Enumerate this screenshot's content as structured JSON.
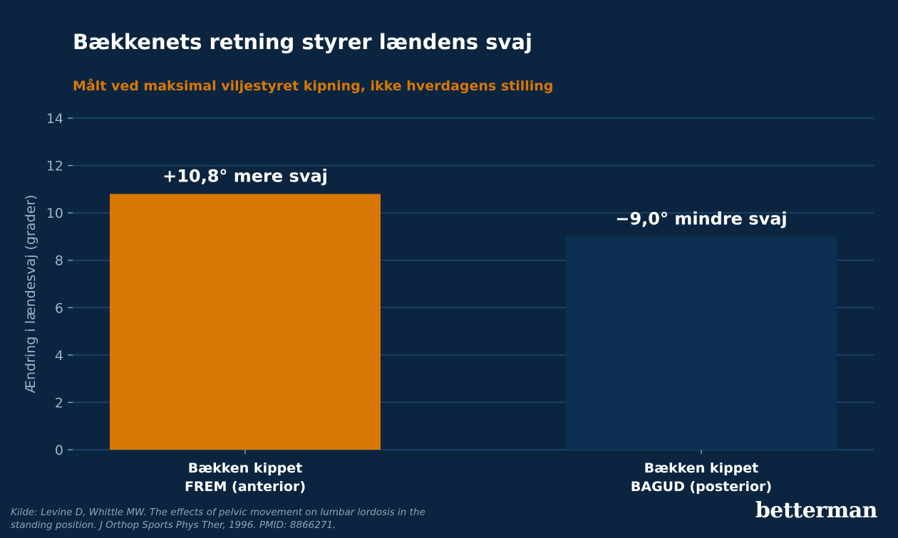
{
  "chart_data": {
    "type": "bar",
    "title": "Bækkenets retning styrer lændens svaj",
    "subtitle": "Målt ved maksimal viljestyret kipning, ikke hverdagens stilling",
    "ylabel": "Ændring i lændesvaj (grader)",
    "ylim": [
      0,
      14
    ],
    "yticks": [
      0,
      2,
      4,
      6,
      8,
      10,
      12,
      14
    ],
    "grid": true,
    "categories": [
      [
        "Bække­n kippet",
        "FREM (anterior)"
      ],
      [
        "Bækken kippet",
        "BAGUD (posterior)"
      ]
    ],
    "values": [
      10.8,
      9.0
    ],
    "data_labels": [
      "+10,8° mere svaj",
      "−9,0° mindre svaj"
    ],
    "colors": [
      "#d97706",
      "#0d2f52"
    ]
  },
  "source": "Kilde: Levine D, Whittle MW. The effects of pelvic movement on lumbar lordosis in the standing position. J Orthop Sports Phys Ther, 1996. PMID: 8866271.",
  "brand": "betterman",
  "colors": {
    "background": "#0b2540",
    "grid": "#1f4670",
    "tick_text": "#9fb3c8",
    "label_text": "#ffffff",
    "accent": "#d97706"
  }
}
